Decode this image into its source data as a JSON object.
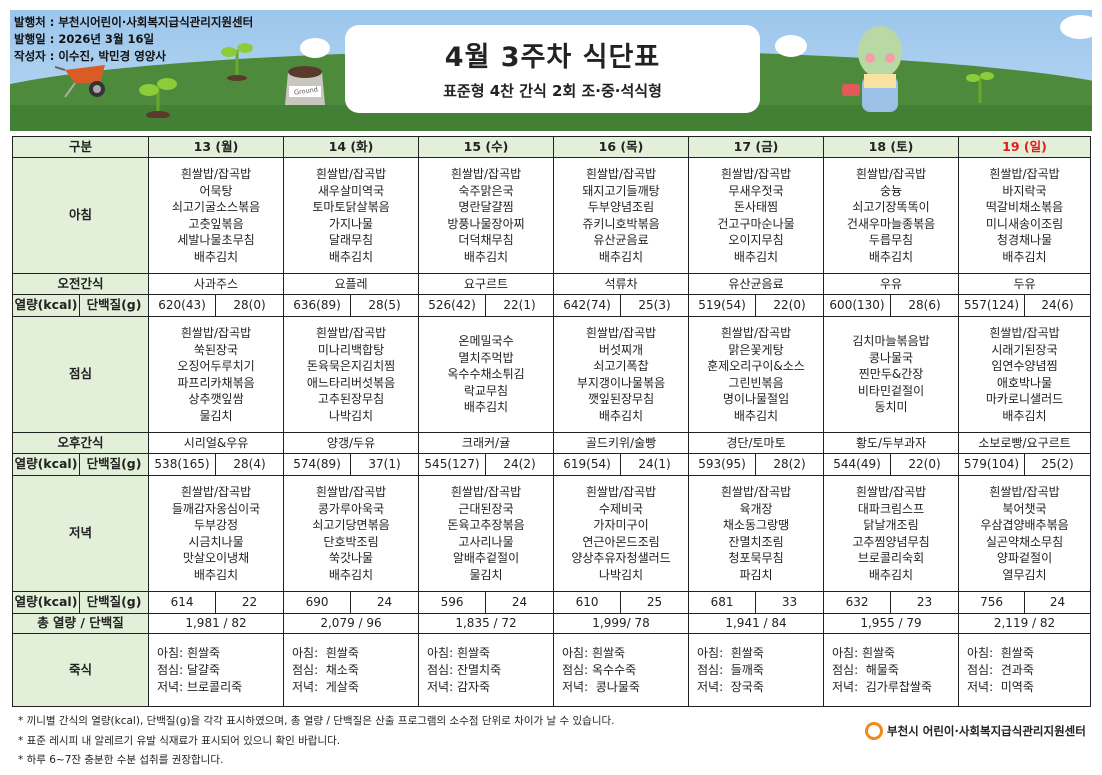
{
  "header": {
    "publisher": "발행처 : 부천시어린이·사회복지급식관리지원센터",
    "issue_date": "발행일 : 2026년 3월 16일",
    "author": "작성자 : 이수진, 박민경 영양사",
    "title": "4월 3주차 식단표",
    "subtitle": "표준형 4찬 간식 2회 조·중·석식형",
    "bag_label": "Ground"
  },
  "colors": {
    "label_bg": "#e2efd9",
    "sunday": "#e21b1b",
    "logo": "#f08a1c"
  },
  "table": {
    "corner_label": "구분",
    "days": [
      "13 (월)",
      "14 (화)",
      "15 (수)",
      "16 (목)",
      "17 (금)",
      "18 (토)",
      "19 (일)"
    ],
    "row_labels": {
      "breakfast": "아침",
      "am_snack": "오전간식",
      "kcal": "열량(kcal)",
      "protein": "단백질(g)",
      "lunch": "점심",
      "pm_snack": "오후간식",
      "dinner": "저녁",
      "total": "총 열량 / 단백질",
      "porridge": "죽식"
    },
    "breakfast": [
      [
        "흰쌀밥/잡곡밥",
        "어묵탕",
        "쇠고기굴소스볶음",
        "고춧잎볶음",
        "세발나물초무침",
        "배추김치"
      ],
      [
        "흰쌀밥/잡곡밥",
        "새우살미역국",
        "토마토닭살볶음",
        "가지나물",
        "달래무침",
        "배추김치"
      ],
      [
        "흰쌀밥/잡곡밥",
        "숙주맑은국",
        "명란달걀찜",
        "방풍나물장아찌",
        "더덕채무침",
        "배추김치"
      ],
      [
        "흰쌀밥/잡곡밥",
        "돼지고기들깨탕",
        "두부양념조림",
        "쥬키니호박볶음",
        "유산균음료",
        "배추김치"
      ],
      [
        "흰쌀밥/잡곡밥",
        "무새우젓국",
        "돈사태찜",
        "건고구마순나물",
        "오이지무침",
        "배추김치"
      ],
      [
        "흰쌀밥/잡곡밥",
        "숭늉",
        "쇠고기장똑똑이",
        "건새우마늘종볶음",
        "두릅무침",
        "배추김치"
      ],
      [
        "흰쌀밥/잡곡밥",
        "바지락국",
        "떡갈비채소볶음",
        "미니새송이조림",
        "청경채나물",
        "배추김치"
      ]
    ],
    "am_snack": [
      "사과주스",
      "요플레",
      "요구르트",
      "석류차",
      "유산균음료",
      "우유",
      "두유"
    ],
    "am_nutrition": [
      [
        "620(43)",
        "28(0)"
      ],
      [
        "636(89)",
        "28(5)"
      ],
      [
        "526(42)",
        "22(1)"
      ],
      [
        "642(74)",
        "25(3)"
      ],
      [
        "519(54)",
        "22(0)"
      ],
      [
        "600(130)",
        "28(6)"
      ],
      [
        "557(124)",
        "24(6)"
      ]
    ],
    "lunch": [
      [
        "흰쌀밥/잡곡밥",
        "쑥된장국",
        "오징어두루치기",
        "파프리카채볶음",
        "상추깻잎쌈",
        "물김치"
      ],
      [
        "흰쌀밥/잡곡밥",
        "미나리백합탕",
        "돈육묵은지김치찜",
        "애느타리버섯볶음",
        "고추된장무침",
        "나박김치"
      ],
      [
        "온메밀국수",
        "멸치주먹밥",
        "옥수수채소튀김",
        "락교무침",
        "배추김치"
      ],
      [
        "흰쌀밥/잡곡밥",
        "버섯찌개",
        "쇠고기폭찹",
        "부지갱이나물볶음",
        "깻잎된장무침",
        "배추김치"
      ],
      [
        "흰쌀밥/잡곡밥",
        "맑은꽃게탕",
        "훈제오리구이&소스",
        "그린빈볶음",
        "명이나물절임",
        "배추김치"
      ],
      [
        "김치마늘볶음밥",
        "콩나물국",
        "찐만두&간장",
        "비타민겉절이",
        "동치미"
      ],
      [
        "흰쌀밥/잡곡밥",
        "시래기된장국",
        "임연수양념찜",
        "애호박나물",
        "마카로니샐러드",
        "배추김치"
      ]
    ],
    "pm_snack": [
      "시리얼&우유",
      "양갱/두유",
      "크래커/귤",
      "골드키위/술빵",
      "경단/토마토",
      "황도/두부과자",
      "소보로빵/요구르트"
    ],
    "pm_nutrition": [
      [
        "538(165)",
        "28(4)"
      ],
      [
        "574(89)",
        "37(1)"
      ],
      [
        "545(127)",
        "24(2)"
      ],
      [
        "619(54)",
        "24(1)"
      ],
      [
        "593(95)",
        "28(2)"
      ],
      [
        "544(49)",
        "22(0)"
      ],
      [
        "579(104)",
        "25(2)"
      ]
    ],
    "dinner": [
      [
        "흰쌀밥/잡곡밥",
        "들깨감자옹심이국",
        "두부강정",
        "시금치나물",
        "맛살오이냉채",
        "배추김치"
      ],
      [
        "흰쌀밥/잡곡밥",
        "콩가루아욱국",
        "쇠고기당면볶음",
        "단호박조림",
        "쑥갓나물",
        "배추김치"
      ],
      [
        "흰쌀밥/잡곡밥",
        "근대된장국",
        "돈육고추장볶음",
        "고사리나물",
        "알배추겉절이",
        "물김치"
      ],
      [
        "흰쌀밥/잡곡밥",
        "수제비국",
        "가자미구이",
        "연근아몬드조림",
        "양상추유자청샐러드",
        "나박김치"
      ],
      [
        "흰쌀밥/잡곡밥",
        "육개장",
        "채소동그랑땡",
        "잔멸치조림",
        "청포묵무침",
        "파김치"
      ],
      [
        "흰쌀밥/잡곡밥",
        "대파크림스프",
        "닭날개조림",
        "고추찜양념무침",
        "브로콜리숙회",
        "배추김치"
      ],
      [
        "흰쌀밥/잡곡밥",
        "북어챗국",
        "우삼겹양배추볶음",
        "실곤약채소무침",
        "양파겉절이",
        "열무김치"
      ]
    ],
    "dinner_nutrition": [
      [
        "614",
        "22"
      ],
      [
        "690",
        "24"
      ],
      [
        "596",
        "24"
      ],
      [
        "610",
        "25"
      ],
      [
        "681",
        "33"
      ],
      [
        "632",
        "23"
      ],
      [
        "756",
        "24"
      ]
    ],
    "totals": [
      "1,981  /  82",
      "2,079  /  96",
      "1,835  /  72",
      "1,999/  78",
      "1,941  /  84",
      "1,955  /  79",
      "2,119  /  82"
    ],
    "porridge": [
      [
        "아침: 흰쌀죽",
        "점심: 달걀죽",
        "저녁: 브로콜리죽"
      ],
      [
        "아침:  흰쌀죽",
        "점심:  채소죽",
        "저녁:  게살죽"
      ],
      [
        "아침: 흰쌀죽",
        "점심: 잔멸치죽",
        "저녁: 감자죽"
      ],
      [
        "아침: 흰쌀죽",
        "점심: 옥수수죽",
        "저녁:  콩나물죽"
      ],
      [
        "아침:  흰쌀죽",
        "점심:  들깨죽",
        "저녁:  장국죽"
      ],
      [
        "아침: 흰쌀죽",
        "점심:  해물죽",
        "저녁:  김가루찹쌀죽"
      ],
      [
        "아침:  흰쌀죽",
        "점심:  견과죽",
        "저녁:  미역죽"
      ]
    ]
  },
  "footer": {
    "notes": [
      "* 끼니별 간식의 열량(kcal), 단백질(g)을 각각 표시하였으며, 총 열량 / 단백질은 산출 프로그램의 소수점 단위로 차이가 날 수 있습니다.",
      "* 표준 레시피 내 알레르기 유발 식재료가 표시되어 있으니 확인 바랍니다.",
      "* 하루 6~7잔 충분한 수분 섭취를 권장합니다."
    ],
    "logo_text": "부천시 어린이·사회복지급식관리지원센터"
  }
}
